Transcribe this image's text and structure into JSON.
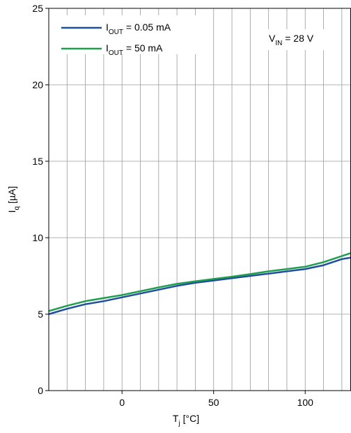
{
  "chart_data": {
    "type": "line",
    "xlabel": {
      "main": "T",
      "sub": "j",
      "suffix": " [°C]"
    },
    "ylabel": {
      "main": "I",
      "sub": "q",
      "suffix": " [µA]"
    },
    "xlim": [
      -40,
      125
    ],
    "ylim": [
      0,
      25
    ],
    "x_ticks": [
      0,
      50,
      100
    ],
    "x_tick_labels": [
      "0",
      "50",
      "100"
    ],
    "y_ticks": [
      0,
      5,
      10,
      15,
      20,
      25
    ],
    "y_tick_labels": [
      "0",
      "5",
      "10",
      "15",
      "20",
      "25"
    ],
    "x_grid_step": 10,
    "y_grid_step": 5,
    "grid": true,
    "legend_position": "top-left",
    "annotation": {
      "main": "V",
      "sub": "IN",
      "suffix": " = 28 V"
    },
    "series": [
      {
        "legend": {
          "main": "I",
          "sub": "OUT",
          "suffix": " = 0.05 mA"
        },
        "color": "#1f4e9a",
        "x": [
          -40,
          -30,
          -20,
          -10,
          0,
          10,
          20,
          30,
          40,
          50,
          60,
          70,
          80,
          90,
          100,
          110,
          120,
          125
        ],
        "y": [
          5.0,
          5.35,
          5.65,
          5.85,
          6.1,
          6.35,
          6.6,
          6.85,
          7.05,
          7.2,
          7.35,
          7.5,
          7.65,
          7.8,
          7.95,
          8.2,
          8.6,
          8.7
        ]
      },
      {
        "legend": {
          "main": "I",
          "sub": "OUT",
          "suffix": " = 50 mA"
        },
        "color": "#1e9e4e",
        "x": [
          -40,
          -30,
          -20,
          -10,
          0,
          10,
          20,
          30,
          40,
          50,
          60,
          70,
          80,
          90,
          100,
          110,
          120,
          125
        ],
        "y": [
          5.2,
          5.55,
          5.85,
          6.05,
          6.25,
          6.5,
          6.75,
          6.98,
          7.15,
          7.3,
          7.45,
          7.62,
          7.8,
          7.95,
          8.1,
          8.4,
          8.8,
          9.0
        ]
      }
    ]
  }
}
